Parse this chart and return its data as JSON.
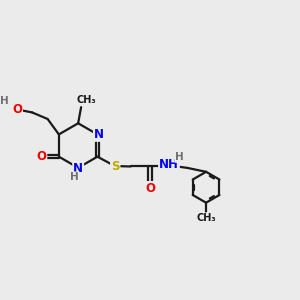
{
  "background_color": "#ebebeb",
  "bond_color": "#1a1a1a",
  "bond_width": 1.6,
  "atom_colors": {
    "C": "#1a1a1a",
    "N": "#0000ee",
    "O": "#ee0000",
    "S": "#bbaa00",
    "H": "#707070"
  },
  "font_size": 8.5,
  "font_size_small": 7.0,
  "figsize": [
    3.0,
    3.0
  ],
  "dpi": 100,
  "xlim": [
    0,
    10
  ],
  "ylim": [
    0,
    10
  ]
}
